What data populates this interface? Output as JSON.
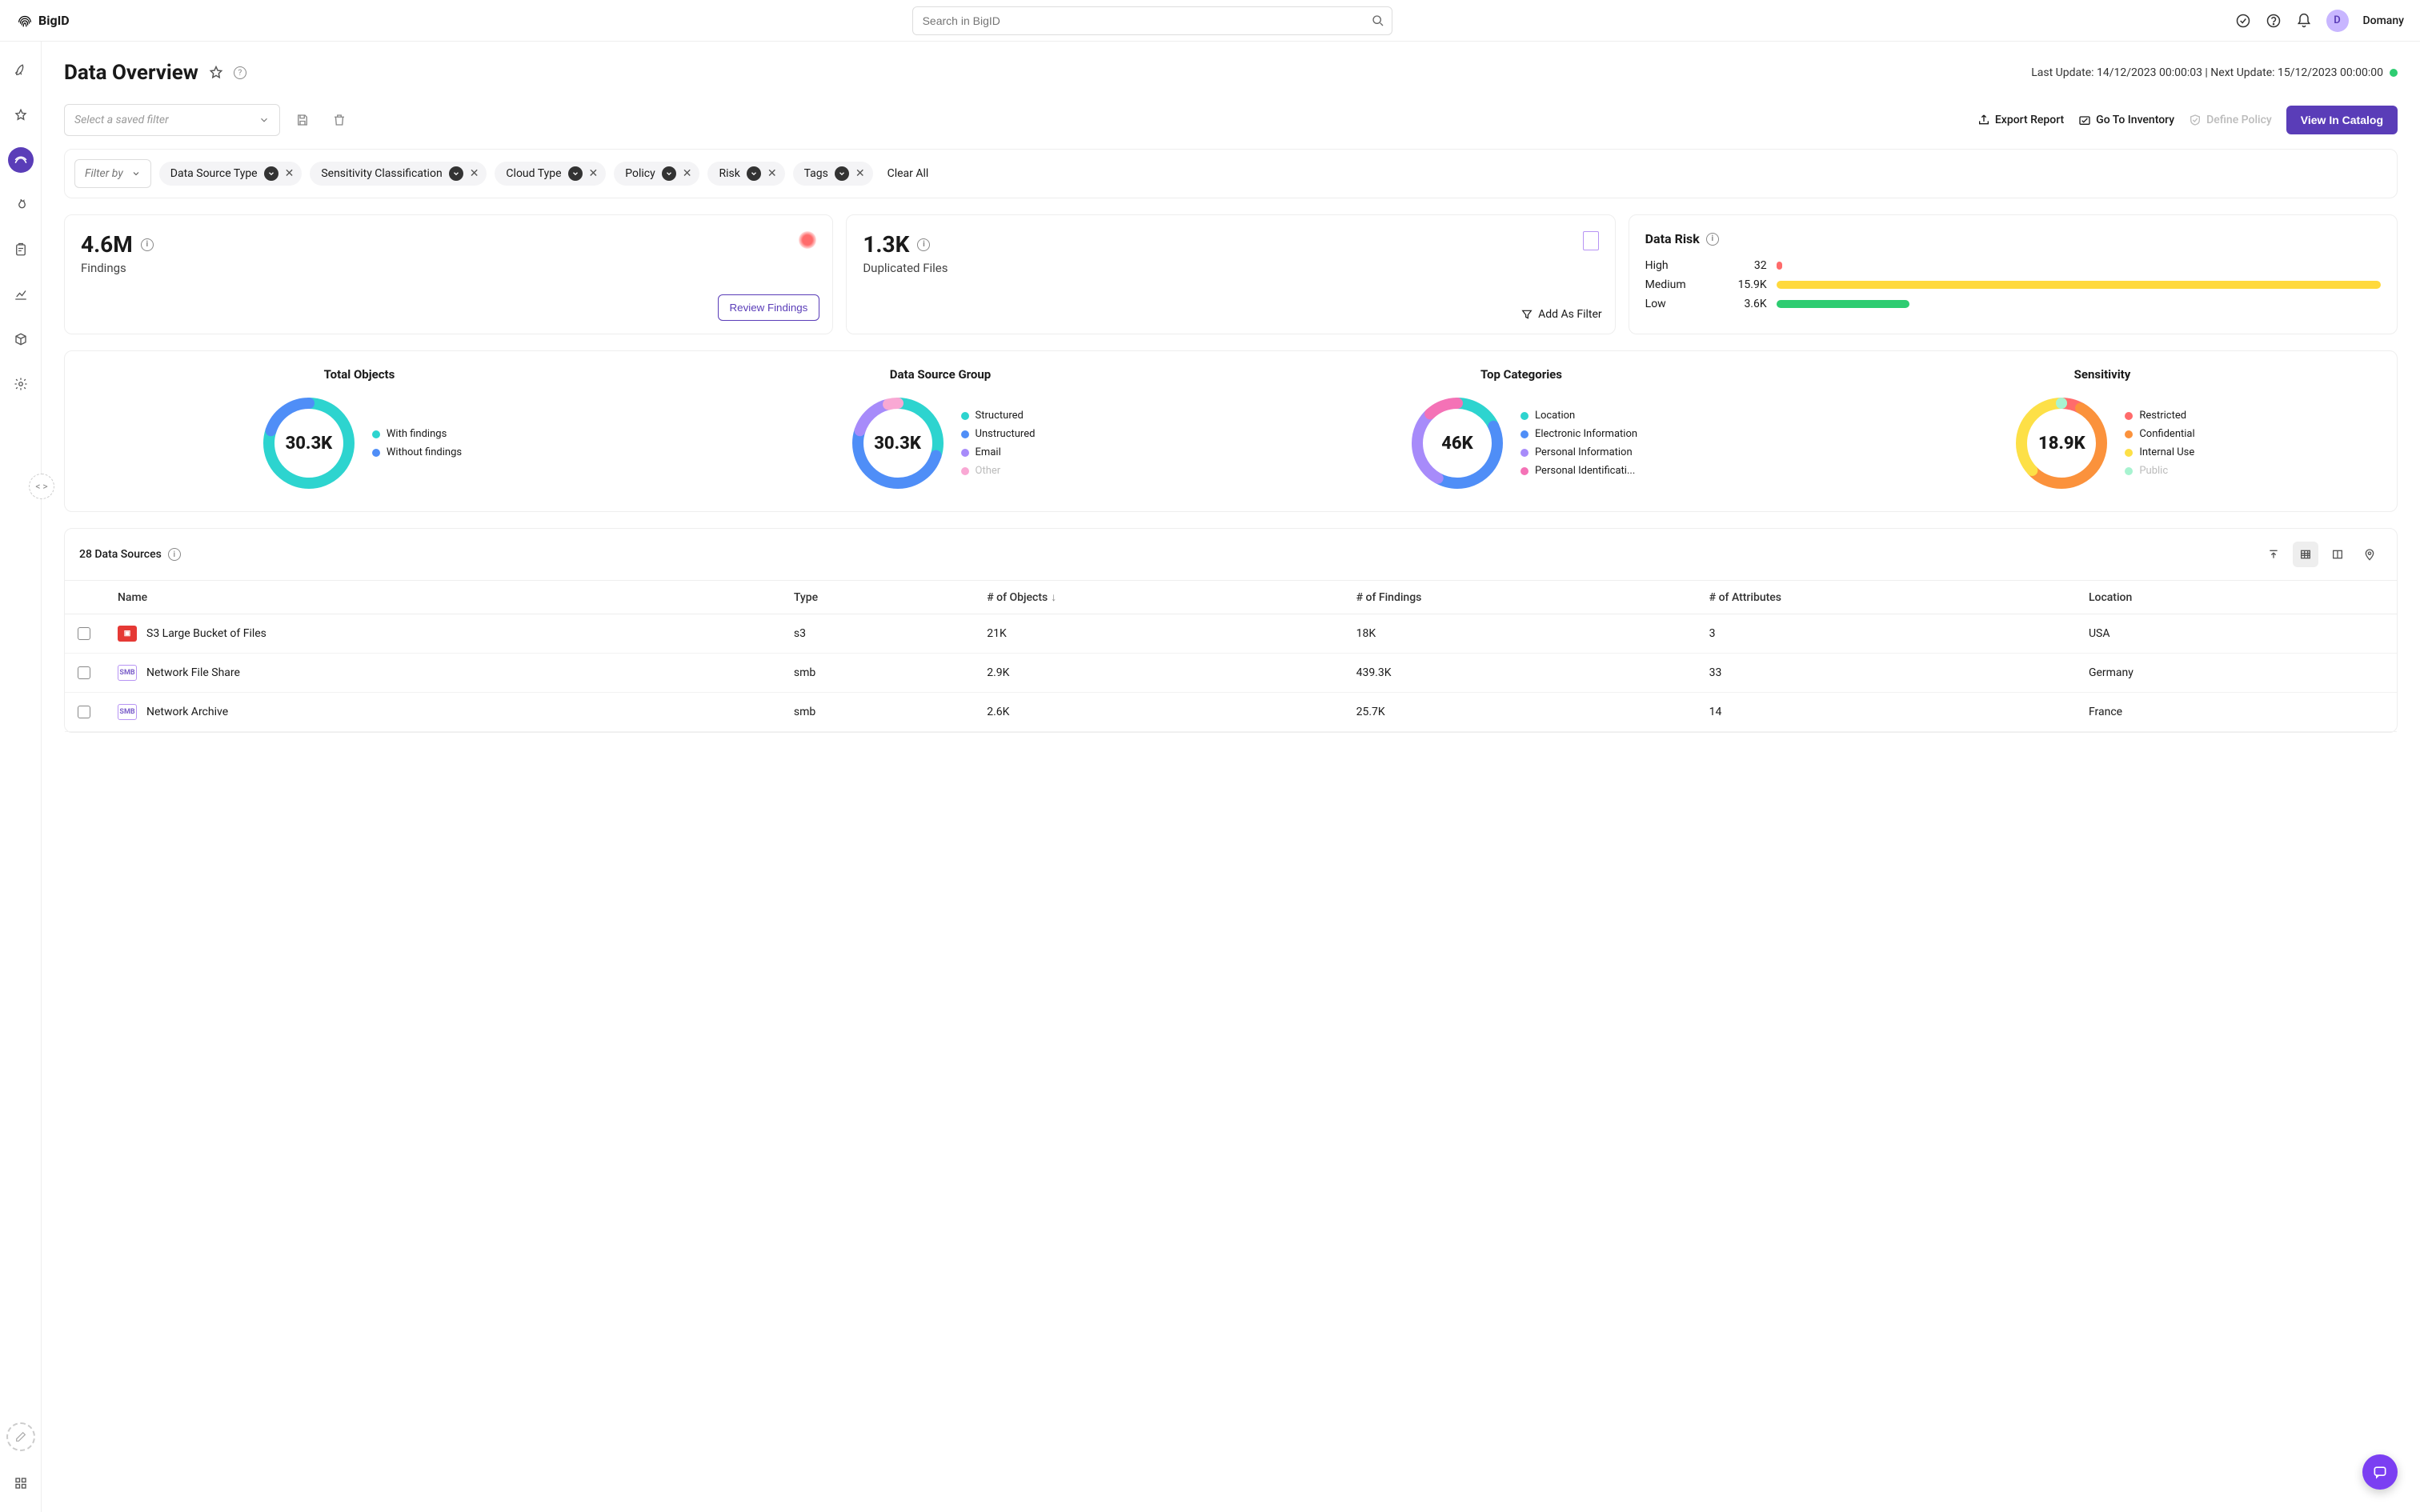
{
  "brand": "BigID",
  "search": {
    "placeholder": "Search in BigID"
  },
  "user": {
    "initial": "D",
    "name": "Domany"
  },
  "page": {
    "title": "Data Overview",
    "lastUpdate": "Last Update: 14/12/2023 00:00:03 | Next Update: 15/12/2023 00:00:00"
  },
  "toolbar": {
    "savedFilterPlaceholder": "Select a saved filter",
    "exportReport": "Export Report",
    "goToInventory": "Go To Inventory",
    "definePolicy": "Define Policy",
    "viewInCatalog": "View In Catalog"
  },
  "filters": {
    "filterBy": "Filter by",
    "chips": [
      "Data Source Type",
      "Sensitivity Classification",
      "Cloud Type",
      "Policy",
      "Risk",
      "Tags"
    ],
    "clearAll": "Clear All"
  },
  "summary": {
    "findings": {
      "value": "4.6M",
      "label": "Findings",
      "action": "Review Findings"
    },
    "duplicated": {
      "value": "1.3K",
      "label": "Duplicated Files",
      "action": "Add As Filter"
    },
    "risk": {
      "title": "Data Risk",
      "rows": [
        {
          "label": "High",
          "value": "32",
          "width": 1,
          "color": "#ff6b6b"
        },
        {
          "label": "Medium",
          "value": "15.9K",
          "width": 100,
          "color": "#ffd93d"
        },
        {
          "label": "Low",
          "value": "3.6K",
          "width": 22,
          "color": "#2ecc71"
        }
      ]
    }
  },
  "charts": [
    {
      "title": "Total Objects",
      "center": "30.3K",
      "segments": [
        {
          "label": "With findings",
          "color": "#2dd4cf",
          "pct": 80
        },
        {
          "label": "Without findings",
          "color": "#4f8ef7",
          "pct": 20
        }
      ]
    },
    {
      "title": "Data Source Group",
      "center": "30.3K",
      "segments": [
        {
          "label": "Structured",
          "color": "#2dd4cf",
          "pct": 30
        },
        {
          "label": "Unstructured",
          "color": "#4f8ef7",
          "pct": 50
        },
        {
          "label": "Email",
          "color": "#a78bfa",
          "pct": 16
        },
        {
          "label": "Other",
          "color": "#f9a8d4",
          "pct": 4,
          "muted": true
        }
      ]
    },
    {
      "title": "Top Categories",
      "center": "46K",
      "segments": [
        {
          "label": "Location",
          "color": "#2dd4cf",
          "pct": 18
        },
        {
          "label": "Electronic Information",
          "color": "#4f8ef7",
          "pct": 40
        },
        {
          "label": "Personal Information",
          "color": "#a78bfa",
          "pct": 30
        },
        {
          "label": "Personal Identificati...",
          "color": "#f472b6",
          "pct": 12
        }
      ]
    },
    {
      "title": "Sensitivity",
      "center": "18.9K",
      "segments": [
        {
          "label": "Restricted",
          "color": "#ff6b6b",
          "pct": 8
        },
        {
          "label": "Confidential",
          "color": "#fb923c",
          "pct": 55
        },
        {
          "label": "Internal Use",
          "color": "#fde047",
          "pct": 37
        },
        {
          "label": "Public",
          "color": "#a7f3d0",
          "pct": 0,
          "muted": true
        }
      ]
    }
  ],
  "dataSources": {
    "countLabel": "28 Data Sources",
    "columns": [
      "Name",
      "Type",
      "# of Objects",
      "# of Findings",
      "# of Attributes",
      "Location"
    ],
    "sortCol": 2,
    "rows": [
      {
        "badge": "s3",
        "name": "S3 Large Bucket of Files",
        "type": "s3",
        "objects": "21K",
        "findings": "18K",
        "attrs": "3",
        "location": "USA"
      },
      {
        "badge": "smb",
        "name": "Network File Share",
        "type": "smb",
        "objects": "2.9K",
        "findings": "439.3K",
        "attrs": "33",
        "location": "Germany"
      },
      {
        "badge": "smb",
        "name": "Network Archive",
        "type": "smb",
        "objects": "2.6K",
        "findings": "25.7K",
        "attrs": "14",
        "location": "France"
      }
    ]
  }
}
